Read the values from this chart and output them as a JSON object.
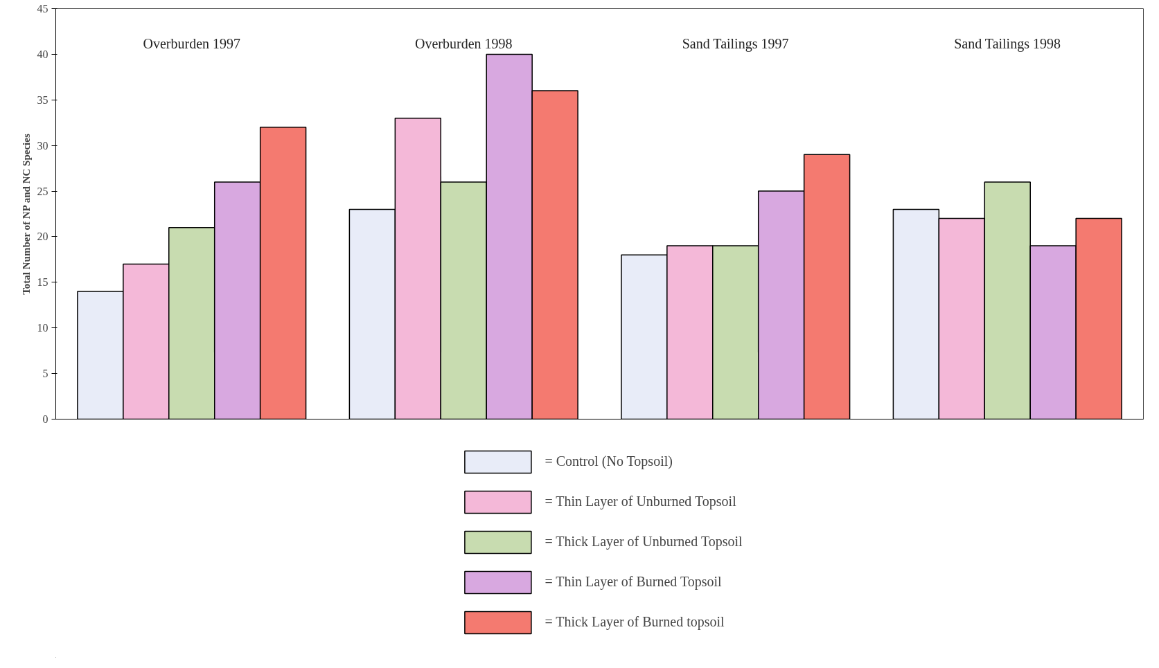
{
  "chart_data": {
    "type": "bar",
    "ylabel": "Total Number of NP and NC Species",
    "categories": [
      "Overburden 1997",
      "Overburden 1998",
      "Sand Tailings 1997",
      "Sand Tailings 1998"
    ],
    "series": [
      {
        "name": "= Control (No Topsoil)",
        "color": "#e8ecf8",
        "values": [
          14,
          23,
          18,
          23
        ]
      },
      {
        "name": "= Thin Layer of Unburned Topsoil",
        "color": "#f4b8d8",
        "values": [
          17,
          33,
          19,
          22
        ]
      },
      {
        "name": "= Thick Layer of Unburned Topsoil",
        "color": "#c8dcb0",
        "values": [
          21,
          26,
          19,
          26
        ]
      },
      {
        "name": "= Thin Layer of Burned Topsoil",
        "color": "#d8a8e0",
        "values": [
          26,
          40,
          25,
          19
        ]
      },
      {
        "name": "= Thick Layer of Burned topsoil",
        "color": "#f47a70",
        "values": [
          32,
          36,
          29,
          22
        ]
      }
    ],
    "ylim": [
      0,
      45
    ],
    "yticks": [
      0,
      5,
      10,
      15,
      20,
      25,
      30,
      35,
      40,
      45
    ],
    "grid": false,
    "legend": "bottom"
  }
}
